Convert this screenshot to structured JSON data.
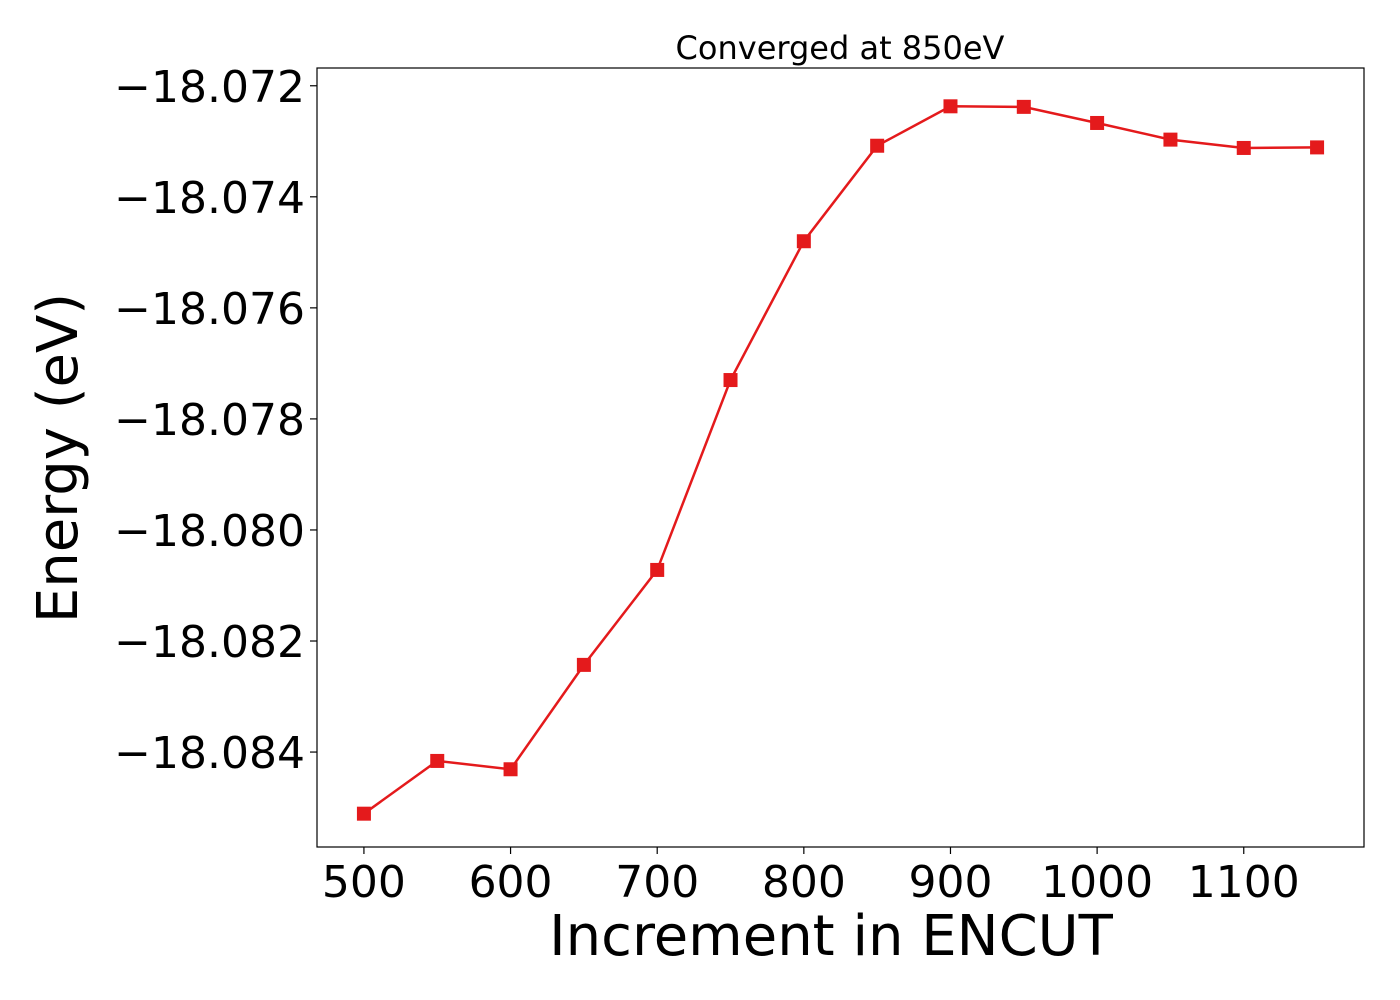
{
  "chart_data": {
    "type": "line",
    "title": "Converged at 850eV",
    "xlabel": "Increment in ENCUT",
    "ylabel": "Energy (eV)",
    "x": [
      500,
      550,
      600,
      650,
      700,
      750,
      800,
      850,
      900,
      950,
      1000,
      1050,
      1100,
      1150
    ],
    "series": [
      {
        "values": [
          -18.08511,
          -18.08416,
          -18.08431,
          -18.08243,
          -18.08072,
          -18.0773,
          -18.0748,
          -18.07308,
          -18.07237,
          -18.07238,
          -18.07267,
          -18.07297,
          -18.07312,
          -18.07311
        ]
      }
    ],
    "xticks": [
      500,
      600,
      700,
      800,
      900,
      1000,
      1100
    ],
    "yticks": [
      -18.084,
      -18.082,
      -18.08,
      -18.078,
      -18.076,
      -18.074,
      -18.072
    ],
    "xtick_labels": [
      "500",
      "600",
      "700",
      "800",
      "900",
      "1000",
      "1100"
    ],
    "ytick_labels": [
      "−18.084",
      "−18.082",
      "−18.080",
      "−18.078",
      "−18.076",
      "−18.074",
      "−18.072"
    ],
    "xlim": [
      468,
      1182
    ],
    "ylim": [
      -18.08571,
      -18.07168
    ],
    "grid": false,
    "marker": "square",
    "line_color": "#e41a1c"
  }
}
